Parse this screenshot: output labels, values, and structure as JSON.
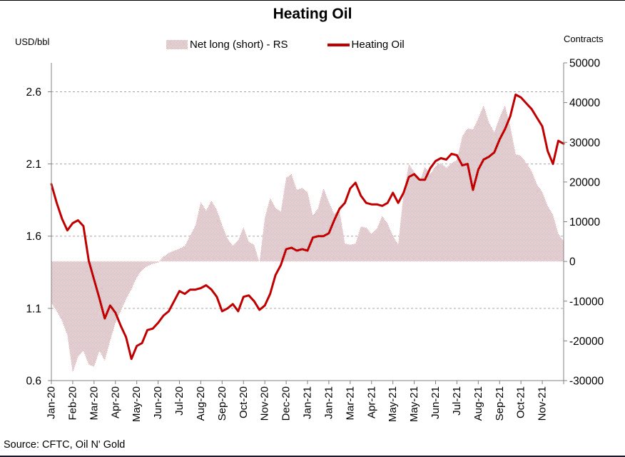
{
  "title": "Heating Oil",
  "source": "Source: CFTC, Oil N' Gold",
  "left_axis": {
    "unit": "USD/bbl",
    "min": 0.6,
    "max": 2.8,
    "tick_values": [
      0.6,
      1.1,
      1.6,
      2.1,
      2.6
    ],
    "tick_labels": [
      "0.6",
      "1.1",
      "1.6",
      "2.1",
      "2.6"
    ]
  },
  "right_axis": {
    "unit": "Contracts",
    "min": -30000,
    "max": 50000,
    "tick_values": [
      -30000,
      -20000,
      -10000,
      0,
      10000,
      20000,
      30000,
      40000,
      50000
    ],
    "tick_labels": [
      "-30000",
      "-20000",
      "-10000",
      "0",
      "10000",
      "20000",
      "30000",
      "40000",
      "50000"
    ]
  },
  "legend": {
    "area_label": "Net long (short) - RS",
    "line_label": "Heating Oil"
  },
  "colors": {
    "line": "#c00000",
    "area_pattern": "#d89ba1",
    "grid": "#a6a6a6",
    "axis": "#808080",
    "text": "#000000"
  },
  "chart_data": {
    "type": "combo",
    "grid": "dashed-horizontal",
    "legend_position": "top-center",
    "categories": [
      "Jan-20",
      "Feb-20",
      "Mar-20",
      "Apr-20",
      "May-20",
      "Jun-20",
      "Jul-20",
      "Aug-20",
      "Sep-20",
      "Oct-20",
      "Nov-20",
      "Dec-20",
      "Jan-21",
      "Jan-21",
      "Mar-21",
      "Apr-21",
      "May-21",
      "May-21",
      "Jun-21",
      "Jul-21",
      "Aug-21",
      "Sep-21",
      "Oct-21",
      "Nov-21"
    ],
    "series": [
      {
        "name": "Net long (short) - RS",
        "type": "area",
        "axis": "right",
        "ylim": [
          -30000,
          50000
        ],
        "values": [
          -10500,
          -12500,
          -15000,
          -18500,
          -28000,
          -24000,
          -22500,
          -26000,
          -26500,
          -22500,
          -25000,
          -20000,
          -15500,
          -12500,
          -9500,
          -7000,
          -4000,
          -2200,
          -1200,
          -600,
          -300,
          1200,
          2100,
          2700,
          3200,
          3900,
          6500,
          9000,
          15000,
          12800,
          15300,
          13000,
          9200,
          5800,
          3900,
          5300,
          8600,
          4900,
          4200,
          -300,
          11000,
          16000,
          13500,
          12500,
          21000,
          22000,
          18000,
          18500,
          17500,
          11500,
          13500,
          18500,
          15000,
          12000,
          12800,
          4500,
          4200,
          4500,
          8800,
          8500,
          7000,
          8200,
          11500,
          9500,
          6500,
          4200,
          17000,
          24500,
          22500,
          20000,
          23800,
          22000,
          24000,
          24800,
          23500,
          24800,
          25500,
          31500,
          33500,
          33200,
          36000,
          39300,
          35000,
          32500,
          36300,
          39300,
          34000,
          27000,
          26600,
          24800,
          22800,
          19400,
          17500,
          14000,
          11800,
          7000,
          5000
        ]
      },
      {
        "name": "Heating Oil",
        "type": "line",
        "axis": "left",
        "ylim": [
          0.6,
          2.8
        ],
        "values": [
          1.96,
          1.83,
          1.72,
          1.64,
          1.69,
          1.71,
          1.67,
          1.43,
          1.3,
          1.17,
          1.03,
          1.12,
          1.07,
          0.98,
          0.9,
          0.75,
          0.84,
          0.86,
          0.95,
          0.96,
          1.0,
          1.05,
          1.08,
          1.15,
          1.22,
          1.2,
          1.23,
          1.23,
          1.24,
          1.26,
          1.23,
          1.18,
          1.08,
          1.1,
          1.13,
          1.08,
          1.18,
          1.19,
          1.15,
          1.09,
          1.12,
          1.2,
          1.33,
          1.4,
          1.51,
          1.52,
          1.5,
          1.51,
          1.5,
          1.59,
          1.6,
          1.6,
          1.62,
          1.71,
          1.79,
          1.83,
          1.93,
          1.97,
          1.88,
          1.83,
          1.82,
          1.82,
          1.81,
          1.83,
          1.9,
          1.83,
          1.9,
          2.01,
          2.03,
          1.99,
          1.99,
          2.07,
          2.12,
          2.14,
          2.13,
          2.17,
          2.16,
          2.09,
          2.1,
          1.92,
          2.06,
          2.13,
          2.15,
          2.18,
          2.27,
          2.34,
          2.43,
          2.58,
          2.56,
          2.52,
          2.48,
          2.42,
          2.36,
          2.19,
          2.1,
          2.26,
          2.24
        ]
      }
    ]
  }
}
